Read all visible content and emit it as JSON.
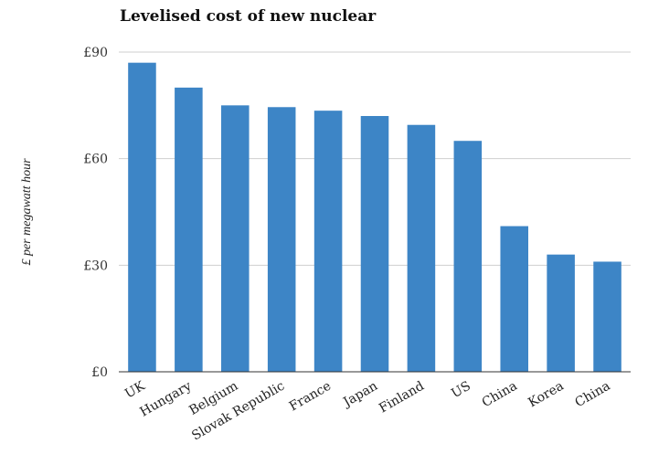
{
  "chart_data": {
    "type": "bar",
    "title": "Levelised cost of new nuclear",
    "xlabel": "",
    "ylabel": "£ per megawatt hour",
    "categories": [
      "UK",
      "Hungary",
      "Belgium",
      "Slovak Republic",
      "France",
      "Japan",
      "Finland",
      "US",
      "China",
      "Korea",
      "China"
    ],
    "values": [
      87,
      80,
      75,
      74.5,
      73.5,
      72,
      69.5,
      65,
      41,
      33,
      31
    ],
    "ylim": [
      0,
      90
    ],
    "yticks": [
      0,
      30,
      60,
      90
    ],
    "ytick_labels": [
      "£0",
      "£30",
      "£60",
      "£90"
    ],
    "bar_color": "#3d85c6",
    "grid": true,
    "legend": "none"
  }
}
